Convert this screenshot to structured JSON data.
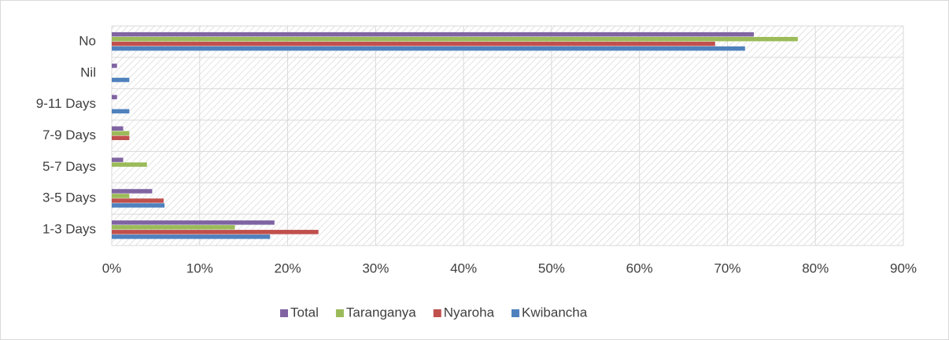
{
  "chart_data": {
    "type": "hbar",
    "categories": [
      "1-3 Days",
      "3-5 Days",
      "5-7 Days",
      "7-9 Days",
      "9-11 Days",
      "Nil",
      "No"
    ],
    "series": [
      {
        "name": "Total",
        "color": "#8064a2",
        "values": [
          18.5,
          4.6,
          1.3,
          1.3,
          0.6,
          0.6,
          73
        ]
      },
      {
        "name": "Taranganya",
        "color": "#9bbb59",
        "values": [
          14,
          2,
          4,
          2,
          0,
          0,
          78
        ]
      },
      {
        "name": "Nyaroha",
        "color": "#c0504d",
        "values": [
          23.5,
          5.9,
          0,
          2,
          0,
          0,
          68.6
        ]
      },
      {
        "name": "Kwibancha",
        "color": "#4f81bd",
        "values": [
          18,
          6,
          0,
          0,
          2,
          2,
          72
        ]
      }
    ],
    "xlim": [
      0,
      90
    ],
    "xticks": [
      {
        "value": 0,
        "label": "0%"
      },
      {
        "value": 10,
        "label": "10%"
      },
      {
        "value": 20,
        "label": "20%"
      },
      {
        "value": 30,
        "label": "30%"
      },
      {
        "value": 40,
        "label": "40%"
      },
      {
        "value": 50,
        "label": "50%"
      },
      {
        "value": 60,
        "label": "60%"
      },
      {
        "value": 70,
        "label": "70%"
      },
      {
        "value": 80,
        "label": "80%"
      },
      {
        "value": 90,
        "label": "90%"
      }
    ],
    "grid": true,
    "legend": "bottom"
  }
}
